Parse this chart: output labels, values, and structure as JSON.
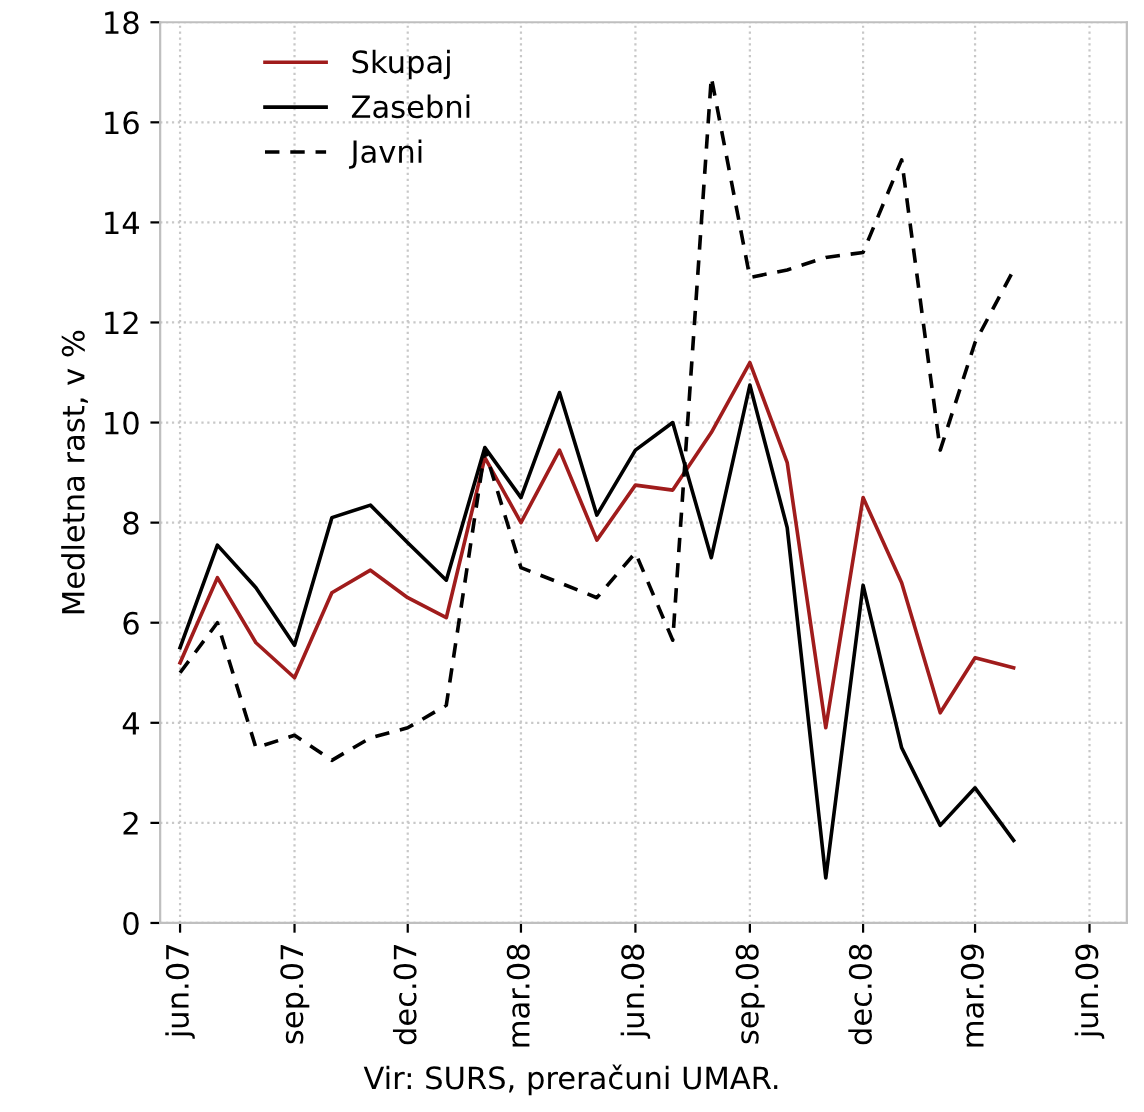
{
  "chart_data": {
    "type": "line",
    "ylabel": "Medletna rast, v %",
    "annotations": [
      "Vir: SURS, preračuni UMAR."
    ],
    "x": [
      "2007-06",
      "2007-07",
      "2007-08",
      "2007-09",
      "2007-10",
      "2007-11",
      "2007-12",
      "2008-01",
      "2008-02",
      "2008-03",
      "2008-04",
      "2008-05",
      "2008-06",
      "2008-07",
      "2008-08",
      "2008-09",
      "2008-10",
      "2008-11",
      "2008-12",
      "2009-01",
      "2009-02",
      "2009-03",
      "2009-04"
    ],
    "series": [
      {
        "name": "Skupaj",
        "color": "#a01c1c",
        "line_style": "solid",
        "values": [
          5.2,
          6.9,
          5.6,
          4.9,
          6.6,
          7.05,
          6.5,
          6.1,
          9.3,
          8.0,
          9.45,
          7.65,
          8.75,
          8.65,
          9.8,
          11.2,
          9.2,
          3.9,
          8.5,
          6.8,
          4.2,
          5.3,
          5.1
        ]
      },
      {
        "name": "Zasebni",
        "color": "#000000",
        "line_style": "solid",
        "values": [
          5.5,
          7.55,
          6.7,
          5.55,
          8.1,
          8.35,
          7.6,
          6.85,
          9.5,
          8.5,
          10.6,
          8.15,
          9.45,
          10.0,
          7.3,
          10.75,
          7.9,
          0.9,
          6.75,
          3.5,
          1.95,
          2.7,
          1.65
        ]
      },
      {
        "name": "Javni",
        "color": "#000000",
        "line_style": "dashed",
        "values": [
          5.0,
          6.0,
          3.5,
          3.75,
          3.25,
          3.7,
          3.9,
          4.35,
          9.45,
          7.1,
          6.8,
          6.5,
          7.4,
          5.65,
          16.9,
          12.9,
          13.05,
          13.3,
          13.4,
          15.25,
          9.45,
          11.6,
          13.05
        ]
      }
    ],
    "xlim": [
      "2007-05-16",
      "2009-07-01"
    ],
    "xticks": [
      {
        "value": "2007-06",
        "label": "jun.07"
      },
      {
        "value": "2007-09",
        "label": "sep.07"
      },
      {
        "value": "2007-12",
        "label": "dec.07"
      },
      {
        "value": "2008-03",
        "label": "mar.08"
      },
      {
        "value": "2008-06",
        "label": "jun.08"
      },
      {
        "value": "2008-09",
        "label": "sep.08"
      },
      {
        "value": "2008-12",
        "label": "dec.08"
      },
      {
        "value": "2009-03",
        "label": "mar.09"
      },
      {
        "value": "2009-06",
        "label": "jun.09"
      }
    ],
    "ylim": [
      0,
      18
    ],
    "yticks": [
      0,
      2,
      4,
      6,
      8,
      10,
      12,
      14,
      16,
      18
    ],
    "grid": true,
    "legend": "top left"
  }
}
